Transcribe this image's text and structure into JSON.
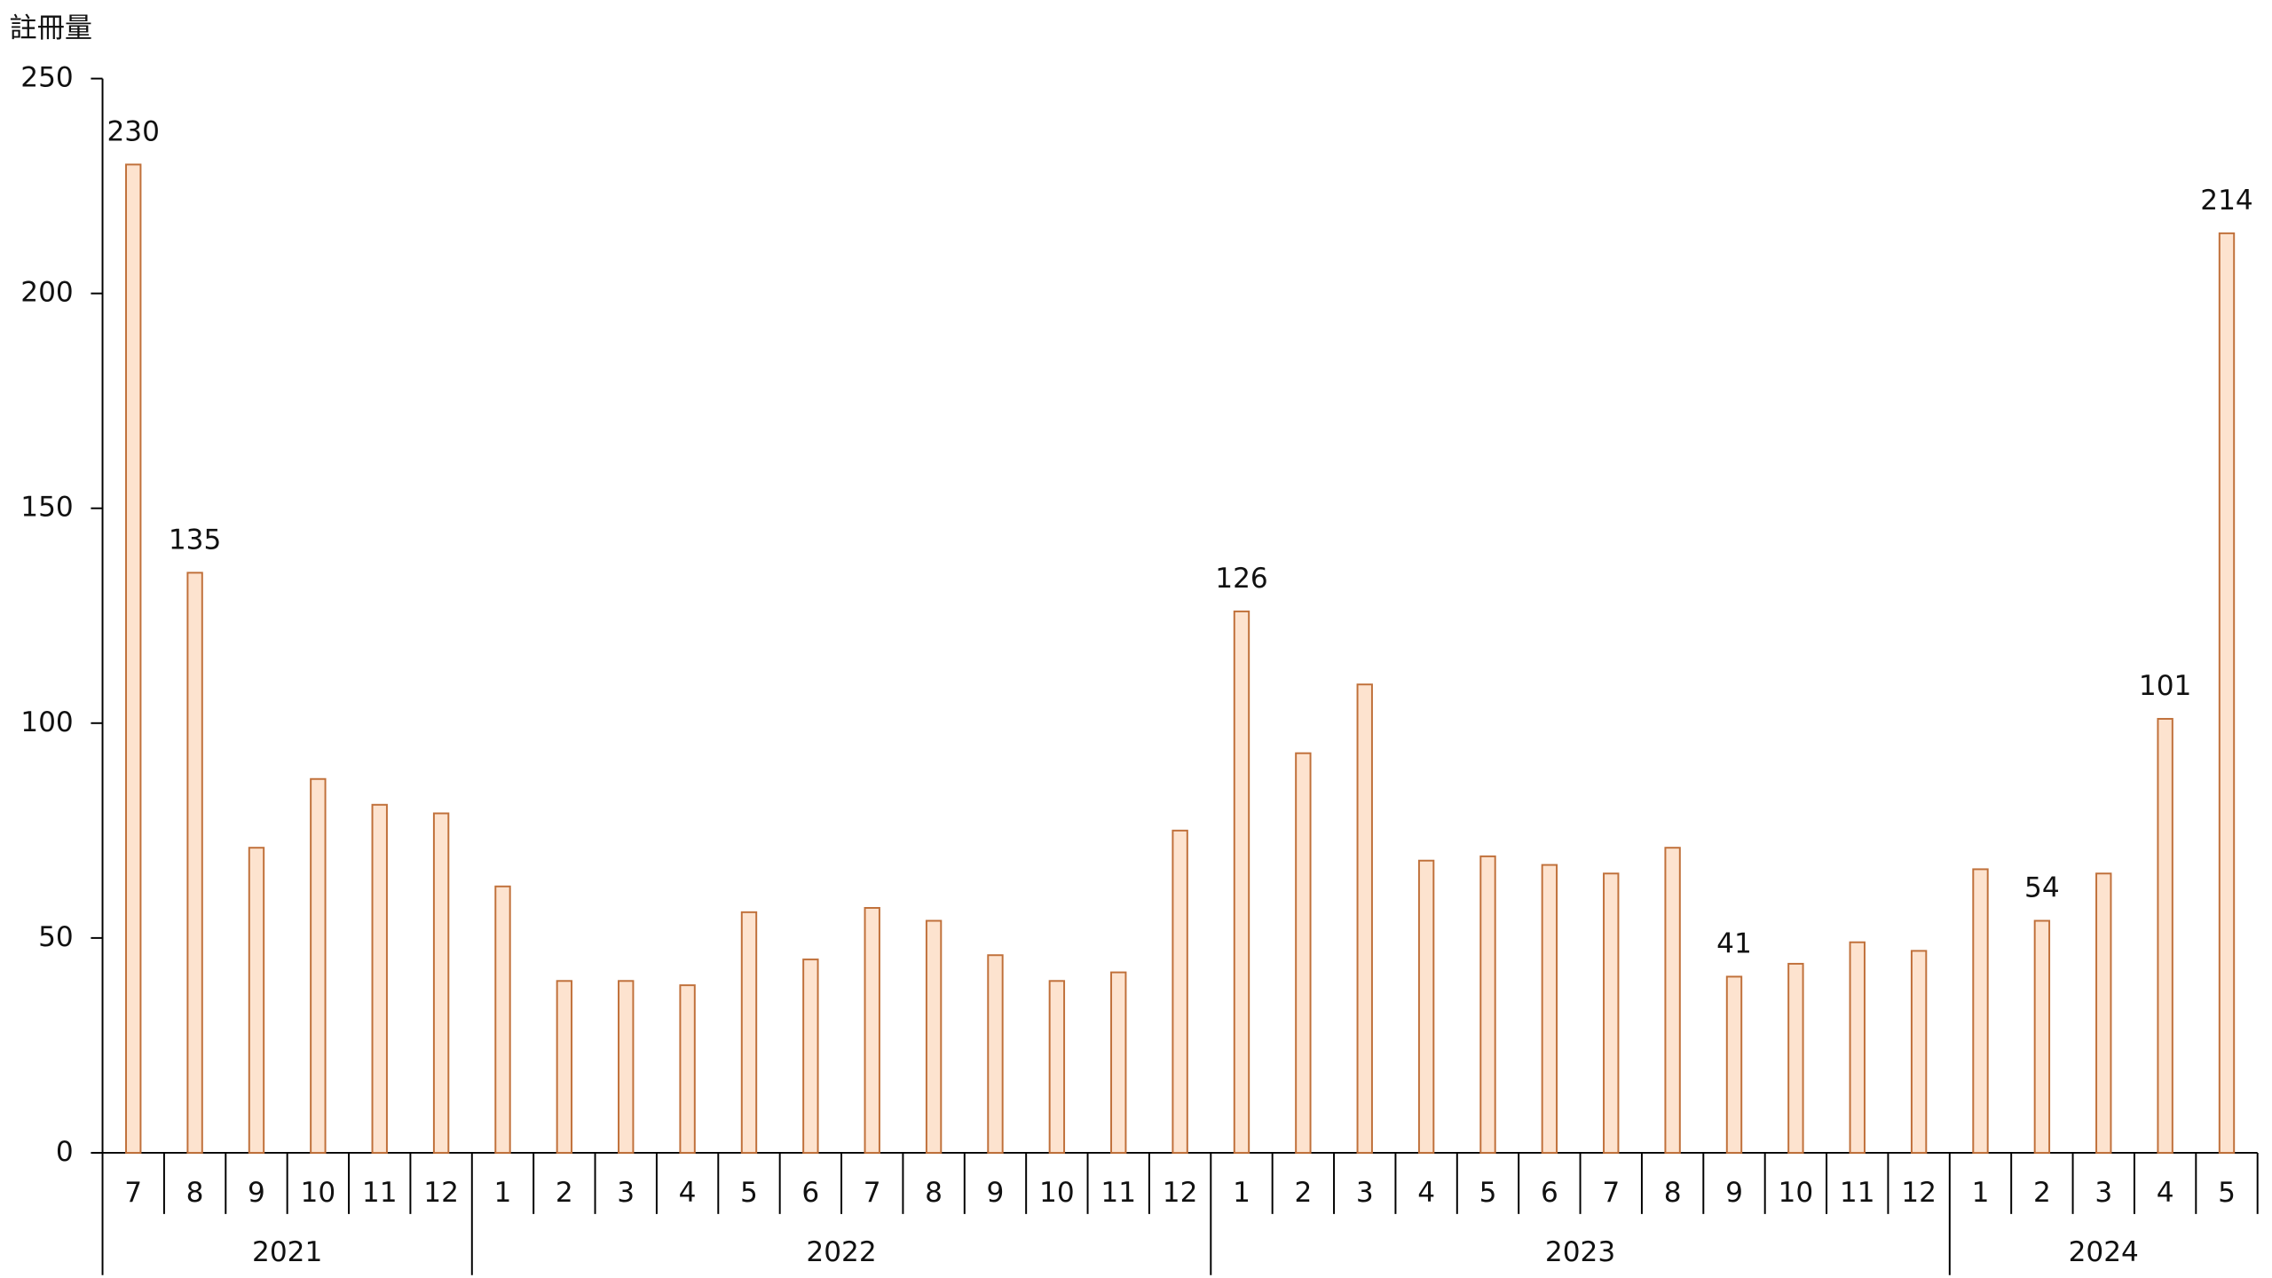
{
  "chart_data": {
    "type": "bar",
    "y_label": "註冊量",
    "groups": [
      {
        "label": "2021",
        "categories": [
          "7",
          "8",
          "9",
          "10",
          "11",
          "12"
        ]
      },
      {
        "label": "2022",
        "categories": [
          "1",
          "2",
          "3",
          "4",
          "5",
          "6",
          "7",
          "8",
          "9",
          "10",
          "11",
          "12"
        ]
      },
      {
        "label": "2023",
        "categories": [
          "1",
          "2",
          "3",
          "4",
          "5",
          "6",
          "7",
          "8",
          "9",
          "10",
          "11",
          "12"
        ]
      },
      {
        "label": "2024",
        "categories": [
          "1",
          "2",
          "3",
          "4",
          "5"
        ]
      }
    ],
    "values": [
      230,
      135,
      71,
      87,
      81,
      79,
      62,
      40,
      40,
      39,
      56,
      45,
      57,
      54,
      46,
      40,
      42,
      75,
      126,
      93,
      109,
      68,
      69,
      67,
      65,
      71,
      41,
      44,
      49,
      47,
      66,
      54,
      65,
      101,
      214
    ],
    "value_labels": [
      "230",
      "135",
      null,
      null,
      null,
      null,
      null,
      null,
      null,
      null,
      null,
      null,
      null,
      null,
      null,
      null,
      null,
      null,
      "126",
      null,
      null,
      null,
      null,
      null,
      null,
      null,
      "41",
      null,
      null,
      null,
      null,
      "54",
      null,
      "101",
      "214"
    ],
    "color": "#fde3cf",
    "edge_color": "#c0703a",
    "ylim": [
      0,
      250
    ],
    "yticks": [
      0,
      50,
      100,
      150,
      200,
      250
    ]
  }
}
